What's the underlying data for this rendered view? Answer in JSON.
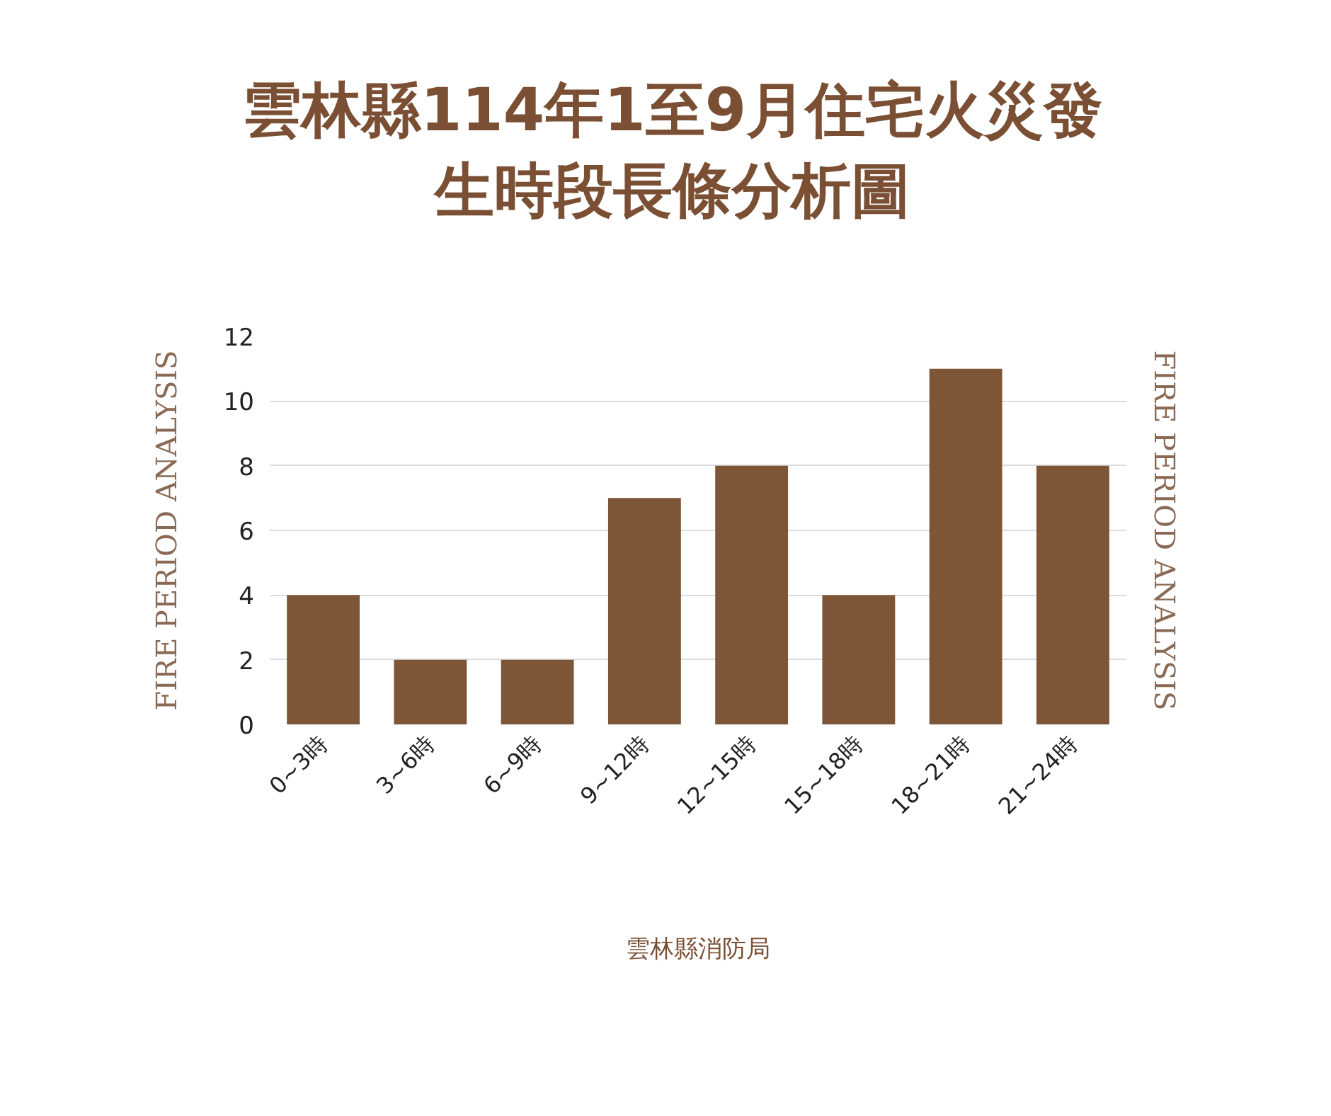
{
  "chart_data": {
    "type": "bar",
    "title": "雲林縣114年1至9月住宅火災發生時段長條分析圖",
    "categories": [
      "0~3時",
      "3~6時",
      "6~9時",
      "9~12時",
      "12~15時",
      "15~18時",
      "18~21時",
      "21~24時"
    ],
    "values": [
      4,
      2,
      2,
      7,
      8,
      4,
      11,
      8
    ],
    "color": "#7d5537",
    "ylim": [
      0,
      12
    ],
    "yticks": [
      0,
      2,
      4,
      6,
      8,
      10,
      12
    ],
    "grid": "y",
    "annotations": [
      "FIRE PERIOD ANALYSIS",
      "FIRE PERIOD ANALYSIS",
      "雲林縣消防局"
    ]
  }
}
